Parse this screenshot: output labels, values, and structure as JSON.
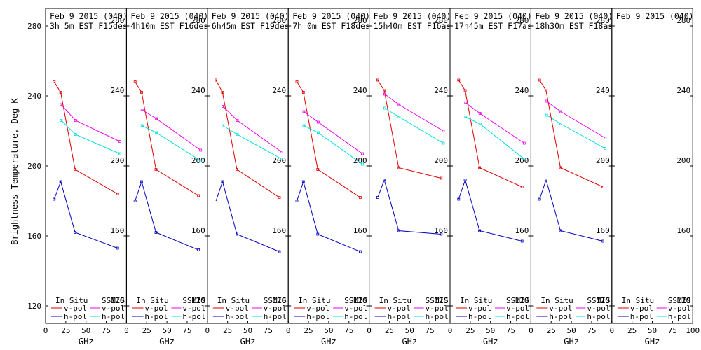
{
  "ylabel": "Brightness Temperature, Deg K",
  "xlabel": "GHz",
  "legend": {
    "in_situ_title": "In Situ",
    "ssmis_title": "SSMIS",
    "vpol": "v-pol",
    "hpol": "h-pol"
  },
  "colors": {
    "insitu_v": "#e00000",
    "insitu_h": "#0000c0",
    "ssmis_v": "#ee00ee",
    "ssmis_h": "#00dddd"
  },
  "chart_data": {
    "type": "line",
    "ylim": [
      110,
      290
    ],
    "yticks": [
      120,
      160,
      200,
      240,
      280
    ],
    "xlim": [
      0,
      100
    ],
    "xticks": [
      0,
      25,
      50,
      75,
      100
    ],
    "xticklabels": [
      "0",
      "25",
      "50",
      "75",
      "100"
    ],
    "panels": [
      {
        "date": "Feb 9 2015 (040)",
        "time": "3h 5m  EST F15des",
        "insitu_x": [
          10.7,
          18.7,
          36.5,
          89
        ],
        "insitu_v": [
          248,
          242,
          198,
          184
        ],
        "insitu_h": [
          181,
          191,
          162,
          153
        ],
        "ssmis_x": [
          19.35,
          37,
          91.65
        ],
        "ssmis_v": [
          235,
          226,
          214
        ],
        "ssmis_h": [
          226,
          218,
          207
        ]
      },
      {
        "date": "Feb 9 2015 (040)",
        "time": "4h10m  EST F16des",
        "insitu_x": [
          10.7,
          18.7,
          36.5,
          89
        ],
        "insitu_v": [
          248,
          242,
          198,
          183
        ],
        "insitu_h": [
          180,
          191,
          162,
          152
        ],
        "ssmis_x": [
          19.35,
          37,
          91.65
        ],
        "ssmis_v": [
          232,
          227,
          209
        ],
        "ssmis_h": [
          223,
          219,
          203
        ]
      },
      {
        "date": "Feb 9 2015 (040)",
        "time": "6h45m  EST F19des",
        "insitu_x": [
          10.7,
          18.7,
          36.5,
          89
        ],
        "insitu_v": [
          249,
          242,
          198,
          182
        ],
        "insitu_h": [
          180,
          191,
          161,
          151
        ],
        "ssmis_x": [
          19.35,
          37,
          91.65
        ],
        "ssmis_v": [
          234,
          226,
          208
        ],
        "ssmis_h": [
          223,
          218,
          204
        ]
      },
      {
        "date": "Feb 9 2015 (040)",
        "time": "7h 0m  EST F18des",
        "insitu_x": [
          10.7,
          18.7,
          36.5,
          89
        ],
        "insitu_v": [
          248,
          242,
          198,
          182
        ],
        "insitu_h": [
          180,
          191,
          161,
          151
        ],
        "ssmis_x": [
          19.35,
          37,
          91.65
        ],
        "ssmis_v": [
          231,
          225,
          207
        ],
        "ssmis_h": [
          223,
          219,
          201
        ]
      },
      {
        "date": "Feb 9 2015 (040)",
        "time": "15h40m  EST F16asc",
        "insitu_x": [
          10.7,
          18.7,
          36.5,
          89
        ],
        "insitu_v": [
          249,
          243,
          199,
          193
        ],
        "insitu_h": [
          182,
          192,
          163,
          161
        ],
        "ssmis_x": [
          19.35,
          37,
          91.65
        ],
        "ssmis_v": [
          241,
          235,
          220
        ],
        "ssmis_h": [
          233,
          228,
          213
        ]
      },
      {
        "date": "Feb 9 2015 (040)",
        "time": "17h45m  EST F17asc",
        "insitu_x": [
          10.7,
          18.7,
          36.5,
          89
        ],
        "insitu_v": [
          249,
          243,
          199,
          188
        ],
        "insitu_h": [
          181,
          192,
          163,
          157
        ],
        "ssmis_x": [
          19.35,
          37,
          91.65
        ],
        "ssmis_v": [
          236,
          230,
          213
        ],
        "ssmis_h": [
          228,
          224,
          204
        ]
      },
      {
        "date": "Feb 9 2015 (040)",
        "time": "18h30m  EST F18asc",
        "insitu_x": [
          10.7,
          18.7,
          36.5,
          89
        ],
        "insitu_v": [
          249,
          243,
          199,
          188
        ],
        "insitu_h": [
          181,
          192,
          163,
          157
        ],
        "ssmis_x": [
          19.35,
          37,
          91.65
        ],
        "ssmis_v": [
          237,
          231,
          216
        ],
        "ssmis_h": [
          229,
          224,
          210
        ]
      },
      {
        "date": "Feb 9 2015 (040)",
        "time": "",
        "insitu_x": [],
        "insitu_v": [],
        "insitu_h": [],
        "ssmis_x": [],
        "ssmis_v": [],
        "ssmis_h": []
      }
    ]
  }
}
